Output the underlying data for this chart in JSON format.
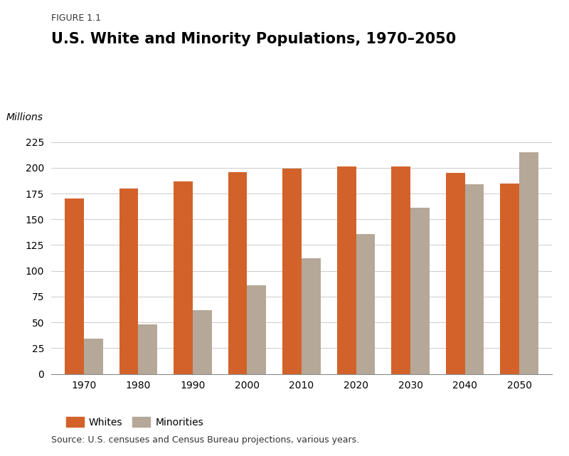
{
  "figure_label": "FIGURE 1.1",
  "title": "U.S. White and Minority Populations, 1970–2050",
  "millions_label": "Millions",
  "source_text": "Source: U.S. censuses and Census Bureau projections, various years.",
  "years": [
    1970,
    1980,
    1990,
    2000,
    2010,
    2020,
    2030,
    2040,
    2050
  ],
  "whites": [
    170,
    180,
    187,
    196,
    199,
    201,
    201,
    195,
    185
  ],
  "minorities": [
    34,
    48,
    62,
    86,
    112,
    136,
    161,
    184,
    215
  ],
  "white_color": "#D2622A",
  "minority_color": "#B5A898",
  "background_color": "#FFFFFF",
  "ylim": [
    0,
    230
  ],
  "yticks": [
    0,
    25,
    50,
    75,
    100,
    125,
    150,
    175,
    200,
    225
  ],
  "bar_width": 0.35,
  "title_fontsize": 15,
  "tick_fontsize": 10,
  "legend_fontsize": 10,
  "figure_label_fontsize": 9,
  "source_fontsize": 9,
  "millions_fontsize": 10
}
